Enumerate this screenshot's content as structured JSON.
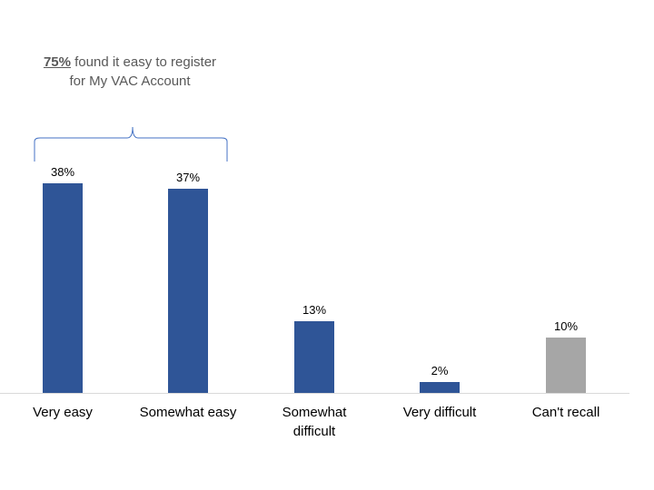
{
  "annotation": {
    "highlight": "75%",
    "text": " found it easy to register for My VAC Account"
  },
  "colors": {
    "primary": "#2f5597",
    "neutral": "#a6a6a6",
    "axis": "#d9d9d9",
    "brace": "#4472c4"
  },
  "chart_data": {
    "type": "bar",
    "title": "",
    "categories": [
      "Very easy",
      "Somewhat easy",
      "Somewhat difficult",
      "Very difficult",
      "Can't recall"
    ],
    "values": [
      38,
      37,
      13,
      2,
      10
    ],
    "value_labels": [
      "38%",
      "37%",
      "13%",
      "2%",
      "10%"
    ],
    "bar_colors": [
      "#2f5597",
      "#2f5597",
      "#2f5597",
      "#2f5597",
      "#a6a6a6"
    ],
    "xlabel": "",
    "ylabel": "",
    "ylim": [
      0,
      40
    ],
    "grid": false,
    "legend": null,
    "annotations": [
      "75% found it easy to register for My VAC Account (bracket over Very easy + Somewhat easy)"
    ]
  }
}
